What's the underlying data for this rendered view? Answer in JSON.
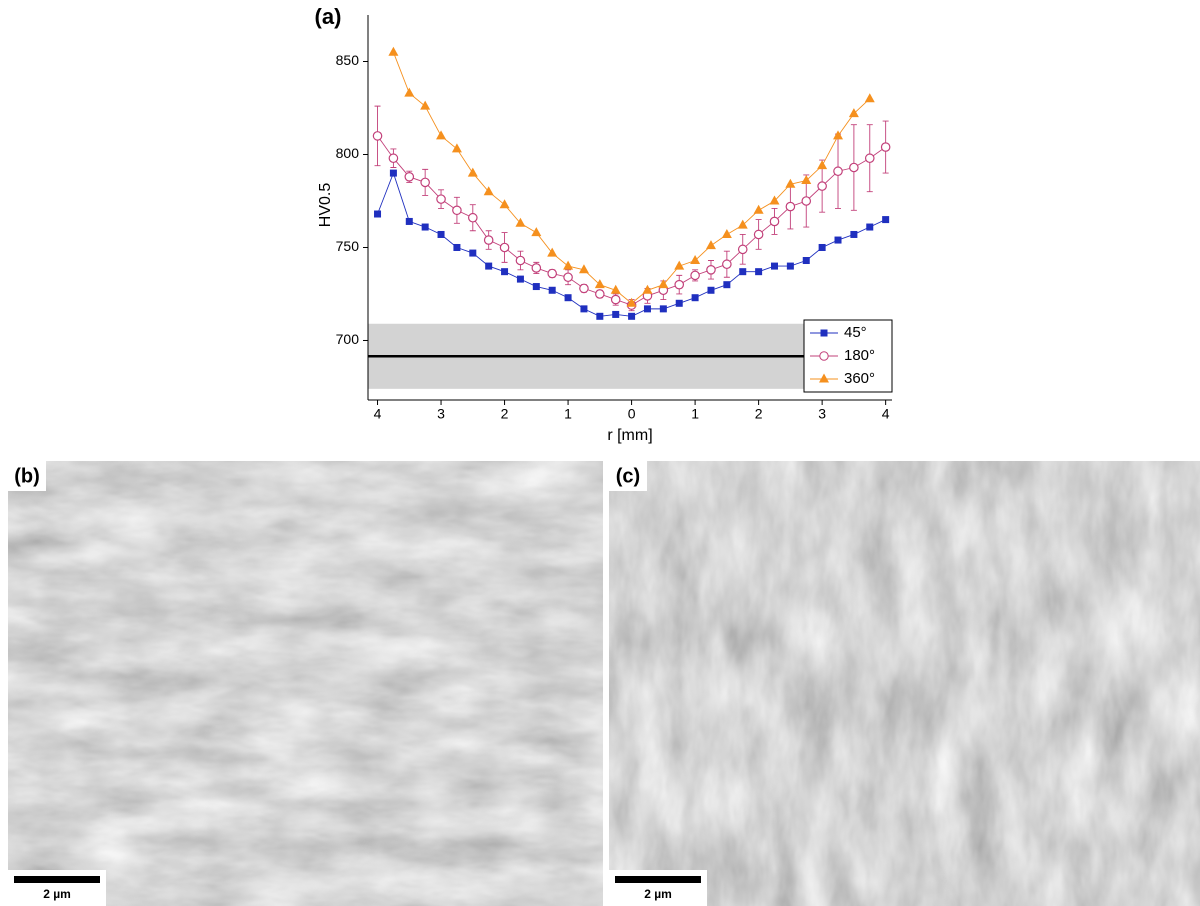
{
  "chart_data": {
    "type": "line",
    "title": "(a)",
    "x_label": "r [mm]",
    "y_label": "HV0.5",
    "x": [
      -4,
      -3.75,
      -3.5,
      -3.25,
      -3,
      -2.75,
      -2.5,
      -2.25,
      -2,
      -1.75,
      -1.5,
      -1.25,
      -1,
      -0.75,
      -0.5,
      -0.25,
      0,
      0.25,
      0.5,
      0.75,
      1,
      1.25,
      1.5,
      1.75,
      2,
      2.25,
      2.5,
      2.75,
      3,
      3.25,
      3.5,
      3.75,
      4
    ],
    "xlim": [
      -4.15,
      4.1
    ],
    "xticks": [
      {
        "value": -4,
        "label": "4"
      },
      {
        "value": -3,
        "label": "3"
      },
      {
        "value": -2,
        "label": "2"
      },
      {
        "value": -1,
        "label": "1"
      },
      0,
      1,
      2,
      3,
      4
    ],
    "ylim": [
      668,
      875
    ],
    "yticks": [
      700,
      750,
      800,
      850
    ],
    "reference_line": 691.5,
    "reference_band": [
      674,
      709
    ],
    "legend": "lower right",
    "series": [
      {
        "name": "45°",
        "color": "#1f2fbf",
        "marker": "square",
        "values": [
          768,
          790,
          764,
          761,
          757,
          750,
          747,
          740,
          737,
          733,
          729,
          727,
          723,
          717,
          713,
          714,
          713,
          717,
          717,
          720,
          723,
          727,
          730,
          737,
          737,
          740,
          740,
          743,
          750,
          754,
          757,
          761,
          765
        ]
      },
      {
        "name": "180°",
        "color": "#c2407a",
        "marker": "circle",
        "values": [
          810,
          798,
          788,
          785,
          776,
          770,
          766,
          754,
          750,
          743,
          739,
          736,
          734,
          728,
          725,
          722,
          719,
          724,
          727,
          730,
          735,
          738,
          741,
          749,
          757,
          764,
          772,
          775,
          783,
          791,
          793,
          798,
          804
        ],
        "errors": [
          16,
          5,
          3,
          7,
          5,
          7,
          7,
          5,
          8,
          5,
          3,
          2,
          4,
          2,
          2,
          3,
          3,
          4,
          5,
          5,
          3,
          5,
          7,
          8,
          8,
          7,
          12,
          14,
          14,
          20,
          23,
          18,
          14
        ]
      },
      {
        "name": "360°",
        "color": "#f5901e",
        "marker": "triangle",
        "values": [
          null,
          855,
          833,
          826,
          810,
          803,
          790,
          780,
          773,
          763,
          758,
          747,
          740,
          738,
          730,
          727,
          720,
          727,
          730,
          740,
          743,
          751,
          757,
          762,
          770,
          775,
          784,
          786,
          794,
          810,
          822,
          830,
          null
        ]
      }
    ]
  },
  "panels": [
    {
      "label": "(b)",
      "scale_bar": "2 µm"
    },
    {
      "label": "(c)",
      "scale_bar": "2 µm"
    }
  ]
}
